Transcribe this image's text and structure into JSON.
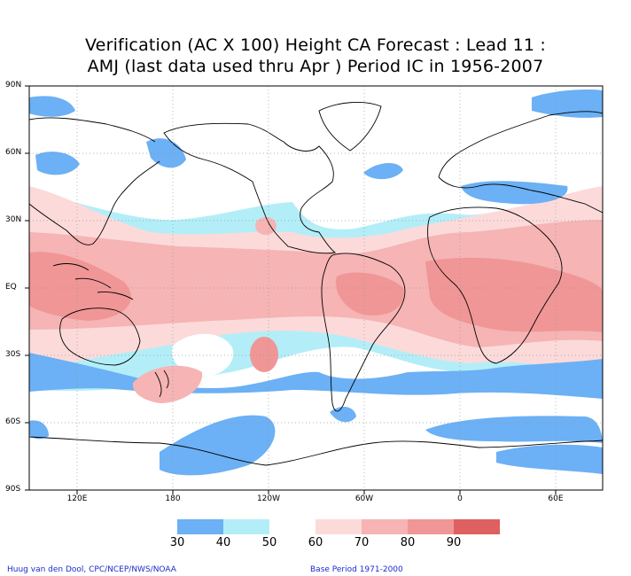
{
  "title": {
    "line1": "Verification (AC X 100) Height CA Forecast : Lead 11 :",
    "line2": "AMJ (last data used thru Apr ) Period IC in 1956-2007"
  },
  "axes": {
    "lat_labels": [
      "90N",
      "60N",
      "30N",
      "EQ",
      "30S",
      "60S",
      "90S"
    ],
    "lon_labels": [
      "120E",
      "180",
      "120W",
      "60W",
      "0",
      "60E"
    ]
  },
  "colorbar": {
    "labels": [
      "30",
      "40",
      "50",
      "60",
      "70",
      "80",
      "90"
    ],
    "colors": [
      "#6cb0f5",
      "#b3eef8",
      "#ffffff",
      "#fcdada",
      "#f6b4b4",
      "#f09696",
      "#e58585",
      "#de6060"
    ]
  },
  "map_colors": {
    "blue_dark": "#6cb0f5",
    "blue_light": "#b3eef8",
    "pink_light": "#fcdada",
    "pink_mid": "#f6b4b4",
    "pink_dark": "#f09696",
    "red": "#e58585",
    "coast": "#000000"
  },
  "footer": {
    "left": "Huug van den Dool, CPC/NCEP/NWS/NOAA",
    "right": "Base Period 1971-2000"
  }
}
